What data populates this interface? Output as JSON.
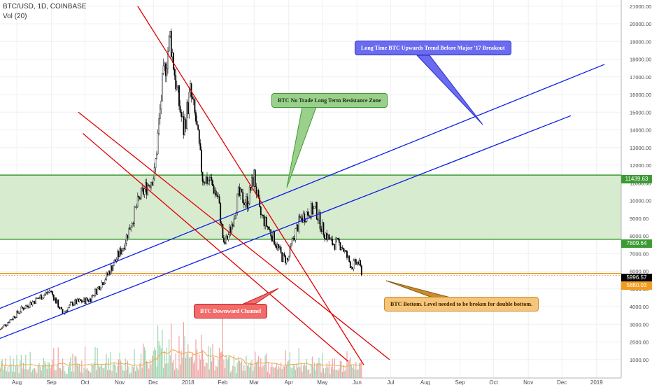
{
  "header": {
    "symbol": "BTC/USD, 1D, COINBASE",
    "volume_label": "Vol (20)"
  },
  "colors": {
    "up": "#ffffff",
    "down": "#000000",
    "channel_red": "#e00000",
    "trend_blue": "#0a1ee6",
    "zone_fill": "#d7ebcf",
    "zone_line": "#3c9a34",
    "bottom_line": "#e2901e",
    "vol_up": "#9ed6b0",
    "vol_down": "#f0a3a3",
    "vol_ma": "#f4a94c"
  },
  "annotations": {
    "blue_callout": "Long Time BTC Upwards Trend Before Major '17 Breakout",
    "green_callout": "BTC No Trade Long Term Resistance Zone",
    "red_callout": "BTC Downward Channel",
    "orange_callout": "BTC Bottom. Level needed to be broken for double bottom."
  },
  "price_tags": {
    "zone_top": "11439.63",
    "zone_bottom": "7809.64",
    "last_price": "5996.57",
    "bottom_level": "5880.03"
  },
  "chart_data": {
    "type": "candlestick",
    "y_axis": {
      "min": 0,
      "max": 21000,
      "ticks": [
        "1000.00",
        "2000.00",
        "3000.00",
        "4000.00",
        "5000.00",
        "6000.00",
        "7000.00",
        "8000.00",
        "9000.00",
        "10000.00",
        "11000.00",
        "12000.00",
        "13000.00",
        "14000.00",
        "15000.00",
        "16000.00",
        "17000.00",
        "18000.00",
        "19000.00",
        "20000.00",
        "21000.00"
      ]
    },
    "x_axis": {
      "labels": [
        "Aug",
        "Sep",
        "Oct",
        "Nov",
        "Dec",
        "2018",
        "Feb",
        "Mar",
        "Apr",
        "May",
        "Jun",
        "Jul",
        "Aug",
        "Sep",
        "Oct",
        "Nov",
        "Dec",
        "2019"
      ],
      "label_days": [
        15,
        46,
        76,
        107,
        137,
        168,
        199,
        227,
        258,
        288,
        319,
        349,
        380,
        411,
        441,
        472,
        502,
        533
      ]
    },
    "series": [
      {
        "name": "close",
        "points": [
          [
            0,
            2700
          ],
          [
            20,
            3900
          ],
          [
            45,
            4900
          ],
          [
            56,
            3600
          ],
          [
            65,
            4200
          ],
          [
            80,
            4400
          ],
          [
            95,
            5700
          ],
          [
            110,
            7400
          ],
          [
            125,
            10200
          ],
          [
            138,
            11500
          ],
          [
            145,
            16500
          ],
          [
            152,
            19300
          ],
          [
            158,
            16200
          ],
          [
            164,
            14000
          ],
          [
            170,
            16100
          ],
          [
            175,
            14500
          ],
          [
            181,
            11300
          ],
          [
            188,
            11100
          ],
          [
            195,
            10100
          ],
          [
            200,
            7400
          ],
          [
            206,
            8400
          ],
          [
            213,
            10300
          ],
          [
            221,
            9900
          ],
          [
            227,
            11400
          ],
          [
            232,
            9300
          ],
          [
            240,
            8400
          ],
          [
            245,
            7800
          ],
          [
            252,
            6800
          ],
          [
            257,
            6600
          ],
          [
            262,
            7900
          ],
          [
            268,
            8900
          ],
          [
            276,
            9400
          ],
          [
            282,
            9500
          ],
          [
            288,
            8400
          ],
          [
            296,
            7600
          ],
          [
            305,
            7500
          ],
          [
            310,
            6800
          ],
          [
            314,
            6300
          ],
          [
            320,
            6500
          ],
          [
            323,
            5996
          ]
        ]
      }
    ],
    "resistance_zone": {
      "top": 11439.63,
      "bottom": 7809.64
    },
    "bottom_level": 5880.03,
    "trend_lines": [
      {
        "name": "upper_channel",
        "from": [
          0,
          3900
        ],
        "to": [
          540,
          17700
        ]
      },
      {
        "name": "lower_channel",
        "from": [
          0,
          2200
        ],
        "to": [
          510,
          14800
        ]
      },
      {
        "name": "descending_1",
        "from": [
          123,
          21000
        ],
        "to": [
          325,
          700
        ]
      },
      {
        "name": "descending_2",
        "from": [
          70,
          15000
        ],
        "to": [
          348,
          1000
        ]
      },
      {
        "name": "descending_3",
        "from": [
          74,
          13800
        ],
        "to": [
          311,
          900
        ]
      }
    ]
  }
}
